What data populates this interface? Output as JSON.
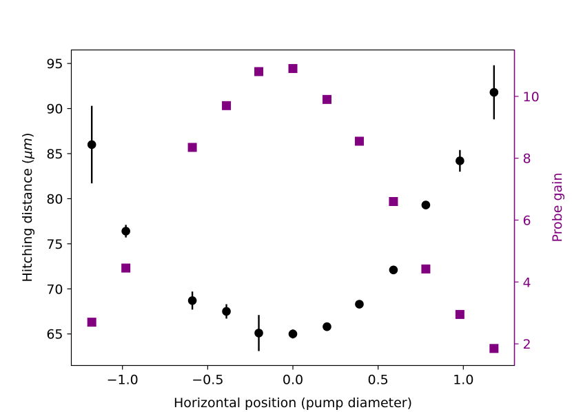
{
  "chart_data": {
    "type": "scatter",
    "xlabel": "Horizontal position (pump diameter)",
    "ylabel_prefix": "Hitching distance (",
    "ylabel_unit": "μm",
    "ylabel_suffix": ")",
    "y2label": "Probe gain",
    "xlim": [
      -1.3,
      1.3
    ],
    "ylim": [
      61.5,
      96.5
    ],
    "y2lim": [
      1.3,
      11.5
    ],
    "x_ticks": [
      -1.0,
      -0.5,
      0.0,
      0.5,
      1.0
    ],
    "x_tick_labels": [
      "−1.0",
      "−0.5",
      "0.0",
      "0.5",
      "1.0"
    ],
    "y_ticks": [
      65,
      70,
      75,
      80,
      85,
      90,
      95
    ],
    "y_tick_labels": [
      "65",
      "70",
      "75",
      "80",
      "85",
      "90",
      "95"
    ],
    "y2_ticks": [
      2,
      4,
      6,
      8,
      10
    ],
    "y2_tick_labels": [
      "2",
      "4",
      "6",
      "8",
      "10"
    ],
    "grid": false,
    "colors": {
      "hitching": "#000000",
      "gain": "#800080",
      "axes": "#000000"
    },
    "series": [
      {
        "axis": "left",
        "marker": "circle",
        "x": [
          -1.18,
          -0.98,
          -0.59,
          -0.39,
          -0.2,
          0.0,
          0.2,
          0.39,
          0.59,
          0.78,
          0.98,
          1.18
        ],
        "y": [
          86.0,
          76.4,
          68.7,
          67.5,
          65.1,
          65.0,
          65.8,
          68.3,
          72.1,
          79.3,
          84.2,
          91.8
        ],
        "yerr": [
          4.3,
          0.7,
          1.0,
          0.8,
          2.0,
          0.5,
          0.0,
          0.0,
          0.0,
          0.0,
          1.2,
          3.0
        ]
      },
      {
        "axis": "right",
        "marker": "square",
        "x": [
          -1.18,
          -0.98,
          -0.59,
          -0.39,
          -0.2,
          0.0,
          0.2,
          0.39,
          0.59,
          0.78,
          0.98,
          1.18
        ],
        "y": [
          2.7,
          4.45,
          8.35,
          9.7,
          10.8,
          10.9,
          9.9,
          8.55,
          6.6,
          4.42,
          2.95,
          1.85
        ]
      }
    ]
  }
}
